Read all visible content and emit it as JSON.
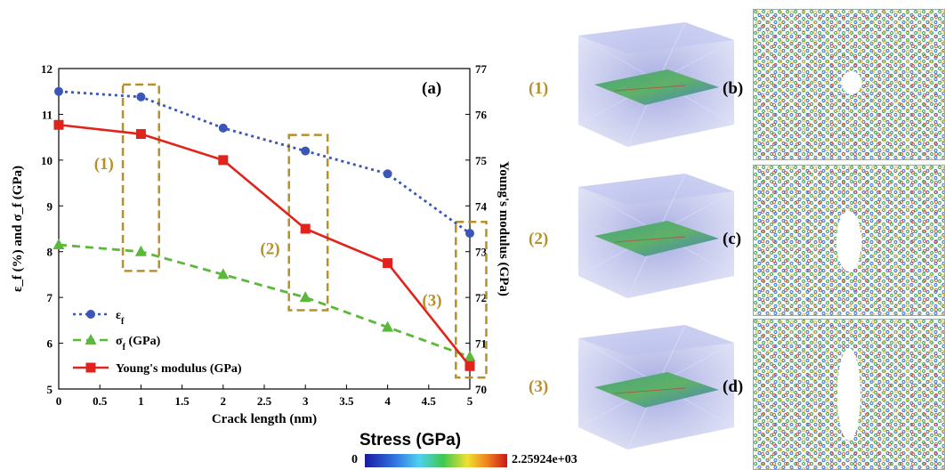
{
  "chart_data": {
    "type": "line",
    "panel_label": "(a)",
    "xlabel": "Crack length (nm)",
    "ylabel_left": "ε_f (%) and σ_f (GPa)",
    "ylabel_right": "Young's modulus (GPa)",
    "x_ticks": [
      "0",
      "0.5",
      "1",
      "1.5",
      "2",
      "2.5",
      "3",
      "3.5",
      "4",
      "4.5",
      "5"
    ],
    "y_left_ticks": [
      "5",
      "6",
      "7",
      "8",
      "9",
      "10",
      "11",
      "12"
    ],
    "y_right_ticks": [
      "70",
      "71",
      "72",
      "73",
      "74",
      "75",
      "76",
      "77"
    ],
    "xlim": [
      0,
      5
    ],
    "ylim_left": [
      5,
      12
    ],
    "ylim_right": [
      70,
      77
    ],
    "series": [
      {
        "name": "ε",
        "name_sub": "f",
        "axis": "left",
        "color": "#3a56b8",
        "marker": "circle",
        "dash": "dot",
        "x": [
          0,
          1,
          2,
          3,
          4,
          5
        ],
        "y": [
          11.5,
          11.38,
          10.7,
          10.2,
          9.7,
          8.4
        ]
      },
      {
        "name": "σ",
        "name_sub": "f",
        "name_suffix": " (GPa)",
        "axis": "left",
        "color": "#5bb83a",
        "marker": "triangle",
        "dash": "dash",
        "x": [
          0,
          1,
          2,
          3,
          4,
          5
        ],
        "y": [
          8.15,
          8.0,
          7.5,
          7.0,
          6.35,
          5.7
        ]
      },
      {
        "name": "Young's modulus (GPa)",
        "axis": "right",
        "color": "#e0231c",
        "marker": "square",
        "dash": "solid",
        "x": [
          0,
          1,
          2,
          3,
          4,
          5
        ],
        "y": [
          75.77,
          75.57,
          75.0,
          73.5,
          72.75,
          70.5
        ]
      }
    ],
    "annotations": [
      "(1)",
      "(2)",
      "(3)"
    ],
    "legend_position": "bottom-left"
  },
  "figure": {
    "row_labels": [
      "(1)",
      "(2)",
      "(3)"
    ],
    "panel_letters": [
      "(b)",
      "(c)",
      "(d)"
    ],
    "colorbar": {
      "title": "Stress (GPa)",
      "min": "0",
      "max": "2.25924e+03"
    },
    "annotation_color": "#b8902a"
  }
}
